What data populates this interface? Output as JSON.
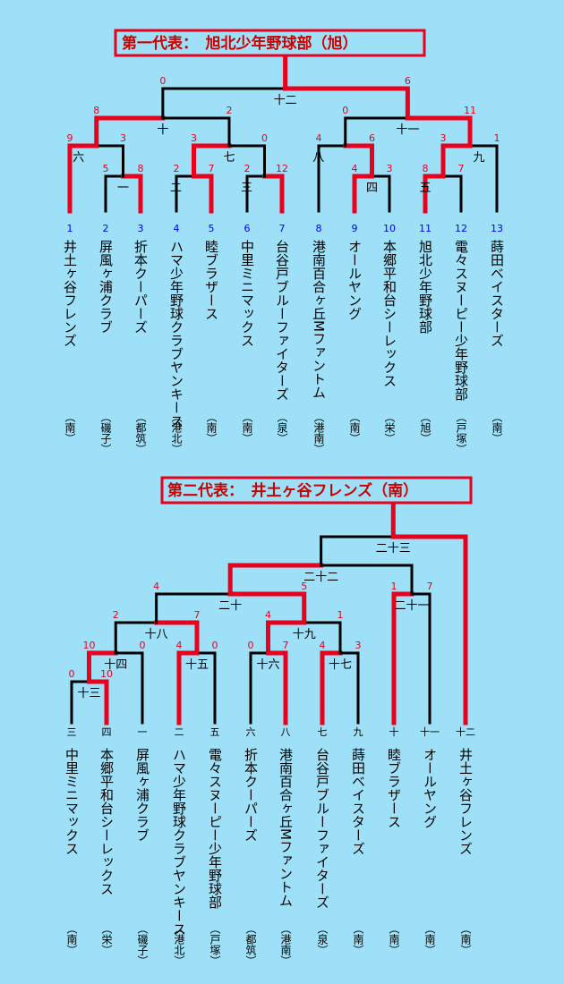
{
  "bracket1": {
    "title": "第一代表：　旭北少年野球部（旭）",
    "teams": [
      {
        "seed": "1",
        "name": "井土ヶ谷フレンズ",
        "loc": "（南）"
      },
      {
        "seed": "2",
        "name": "屏風ヶ浦クラブ",
        "loc": "（磯子）"
      },
      {
        "seed": "3",
        "name": "折本クーパーズ",
        "loc": "（都筑）"
      },
      {
        "seed": "4",
        "name": "ハマ少年野球クラブヤンキース",
        "loc": "（港北）"
      },
      {
        "seed": "5",
        "name": "睦ブラザース",
        "loc": "（南）"
      },
      {
        "seed": "6",
        "name": "中里ミニマックス",
        "loc": "（南）"
      },
      {
        "seed": "7",
        "name": "台谷戸ブルーファイターズ",
        "loc": "（泉）"
      },
      {
        "seed": "8",
        "name": "港南百合ヶ丘Mファントム",
        "loc": "（港南）"
      },
      {
        "seed": "9",
        "name": "オールヤング",
        "loc": "（南）"
      },
      {
        "seed": "10",
        "name": "本郷平和台シーレックス",
        "loc": "（栄）"
      },
      {
        "seed": "11",
        "name": "旭北少年野球部",
        "loc": "（旭）"
      },
      {
        "seed": "12",
        "name": "電々スヌーピー少年野球部",
        "loc": "（戸塚）"
      },
      {
        "seed": "13",
        "name": "蒔田ベイスターズ",
        "loc": "（南）"
      }
    ],
    "rounds": [
      "一",
      "二",
      "三",
      "四",
      "五",
      "六",
      "七",
      "八",
      "九",
      "十",
      "十一",
      "十二"
    ],
    "scores": [
      "5",
      "8",
      "2",
      "7",
      "2",
      "12",
      "4",
      "3",
      "8",
      "7",
      "9",
      "3",
      "3",
      "0",
      "4",
      "6",
      "3",
      "1",
      "8",
      "2",
      "0",
      "11",
      "0",
      "6"
    ]
  },
  "bracket2": {
    "title": "第二代表：　井土ヶ谷フレンズ（南）",
    "teams": [
      {
        "seed": "三",
        "name": "中里ミニマックス",
        "loc": "（南）"
      },
      {
        "seed": "四",
        "name": "本郷平和台シーレックス",
        "loc": "（栄）"
      },
      {
        "seed": "一",
        "name": "屏風ヶ浦クラブ",
        "loc": "（磯子）"
      },
      {
        "seed": "二",
        "name": "ハマ少年野球クラブヤンキース",
        "loc": "（港北）"
      },
      {
        "seed": "五",
        "name": "電々スヌーピー少年野球部",
        "loc": "（戸塚）"
      },
      {
        "seed": "六",
        "name": "折本クーパーズ",
        "loc": "（都筑）"
      },
      {
        "seed": "八",
        "name": "港南百合ヶ丘Mファントム",
        "loc": "（港南）"
      },
      {
        "seed": "七",
        "name": "台谷戸ブルーファイターズ",
        "loc": "（泉）"
      },
      {
        "seed": "九",
        "name": "蒔田ベイスターズ",
        "loc": "（南）"
      },
      {
        "seed": "十",
        "name": "睦ブラザース",
        "loc": "（南）"
      },
      {
        "seed": "十一",
        "name": "オールヤング",
        "loc": "（南）"
      },
      {
        "seed": "十二",
        "name": "井土ヶ谷フレンズ",
        "loc": "（南）"
      }
    ],
    "rounds": [
      "十三",
      "十四",
      "十五",
      "十六",
      "十七",
      "十八",
      "十九",
      "二十",
      "二十一",
      "二十二",
      "二十三"
    ],
    "scores": [
      "0",
      "10",
      "10",
      "0",
      "4",
      "0",
      "0",
      "7",
      "4",
      "3",
      "2",
      "7",
      "4",
      "1",
      "4",
      "5",
      "1",
      "7"
    ]
  },
  "colors": {
    "win": "#e8001c",
    "line": "#000000",
    "seed": "#0000ee",
    "score": "#e8001c"
  }
}
